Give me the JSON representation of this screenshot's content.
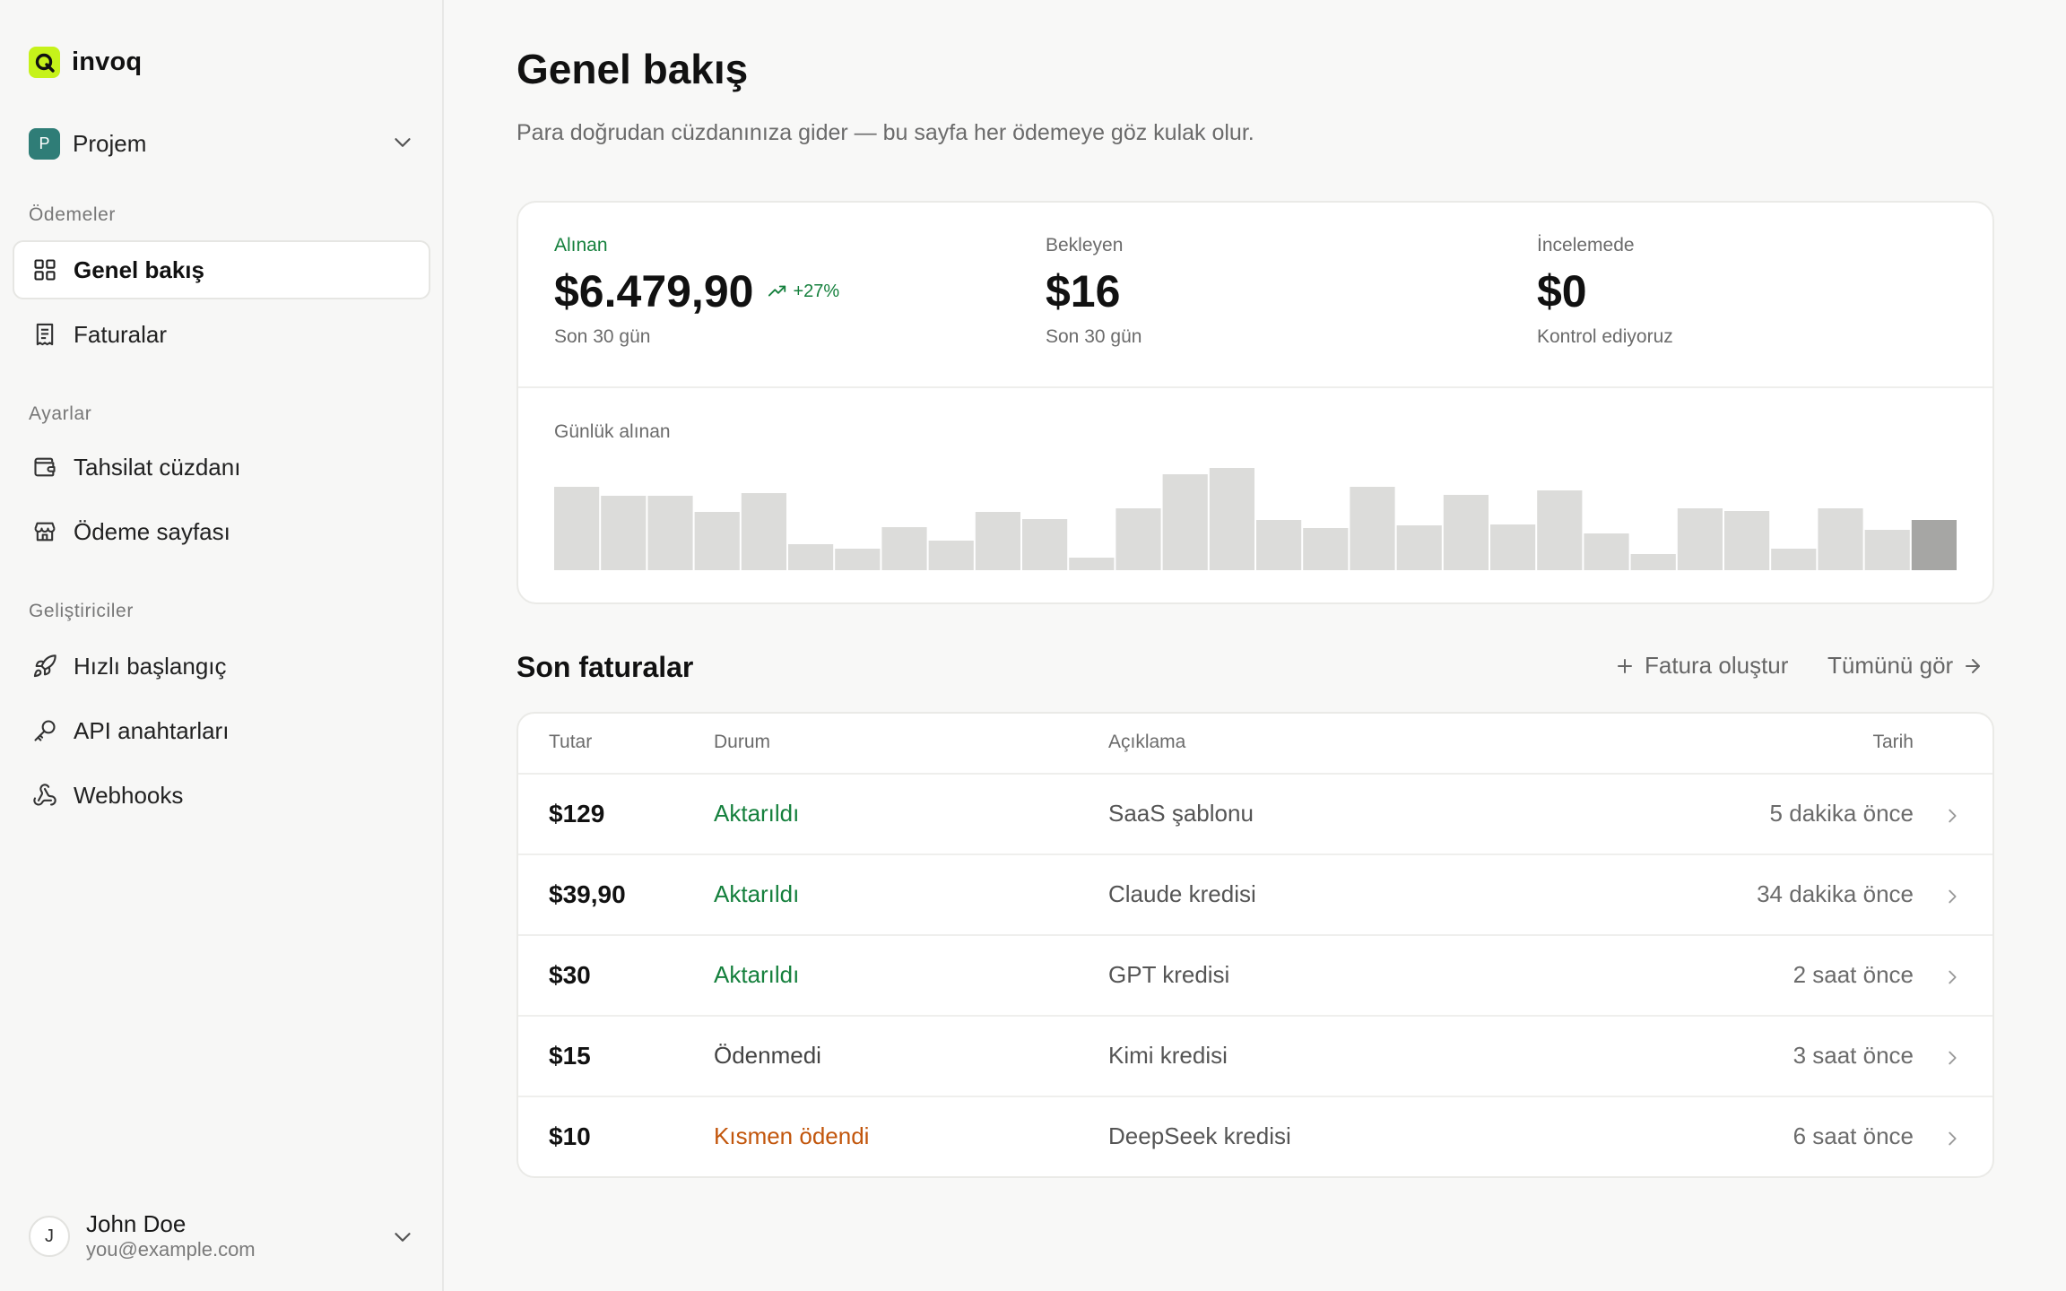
{
  "app": {
    "name": "invoq"
  },
  "project": {
    "avatar_letter": "P",
    "name": "Projem"
  },
  "sidebar": {
    "sections": [
      {
        "title": "Ödemeler",
        "items": [
          {
            "label": "Genel bakış",
            "icon": "grid-icon",
            "active": true
          },
          {
            "label": "Faturalar",
            "icon": "receipt-icon"
          }
        ]
      },
      {
        "title": "Ayarlar",
        "items": [
          {
            "label": "Tahsilat cüzdanı",
            "icon": "wallet-icon"
          },
          {
            "label": "Ödeme sayfası",
            "icon": "store-icon"
          }
        ]
      },
      {
        "title": "Geliştiriciler",
        "items": [
          {
            "label": "Hızlı başlangıç",
            "icon": "rocket-icon"
          },
          {
            "label": "API anahtarları",
            "icon": "key-icon"
          },
          {
            "label": "Webhooks",
            "icon": "webhook-icon"
          }
        ]
      }
    ]
  },
  "user": {
    "avatar_letter": "J",
    "name": "John Doe",
    "email": "you@example.com"
  },
  "page": {
    "title": "Genel bakış",
    "subtitle": "Para doğrudan cüzdanınıza gider — bu sayfa her ödemeye göz kulak olur."
  },
  "stats": [
    {
      "label": "Alınan",
      "value": "$6.479,90",
      "change": "+27%",
      "note": "Son 30 gün"
    },
    {
      "label": "Bekleyen",
      "value": "$16",
      "note": "Son 30 gün"
    },
    {
      "label": "İncelemede",
      "value": "$0",
      "note": "Kontrol ediyoruz"
    }
  ],
  "colors": {
    "accent_green": "#15803d",
    "brand_lime": "#c6f21a",
    "warning_orange": "#c2560c",
    "bar": "#dcdcda",
    "bar_highlight": "#a6a6a4"
  },
  "chart_data": {
    "type": "bar",
    "title": "Günlük alınan",
    "values": [
      62,
      55,
      55,
      43,
      57,
      19,
      16,
      32,
      22,
      43,
      38,
      9,
      46,
      71,
      76,
      37,
      31,
      62,
      33,
      56,
      34,
      59,
      27,
      12,
      46,
      44,
      16,
      46,
      30,
      37
    ],
    "highlight_last": true,
    "ylim": [
      0,
      80
    ]
  },
  "invoices": {
    "title": "Son faturalar",
    "create_label": "Fatura oluştur",
    "view_all_label": "Tümünü gör",
    "columns": {
      "amount": "Tutar",
      "status": "Durum",
      "description": "Açıklama",
      "date": "Tarih"
    },
    "rows": [
      {
        "amount": "$129",
        "status": "Aktarıldı",
        "status_type": "paid",
        "description": "SaaS şablonu",
        "date": "5 dakika önce"
      },
      {
        "amount": "$39,90",
        "status": "Aktarıldı",
        "status_type": "paid",
        "description": "Claude kredisi",
        "date": "34 dakika önce"
      },
      {
        "amount": "$30",
        "status": "Aktarıldı",
        "status_type": "paid",
        "description": "GPT kredisi",
        "date": "2 saat önce"
      },
      {
        "amount": "$15",
        "status": "Ödenmedi",
        "status_type": "unpaid",
        "description": "Kimi kredisi",
        "date": "3 saat önce"
      },
      {
        "amount": "$10",
        "status": "Kısmen ödendi",
        "status_type": "partial",
        "description": "DeepSeek kredisi",
        "date": "6 saat önce"
      }
    ]
  }
}
